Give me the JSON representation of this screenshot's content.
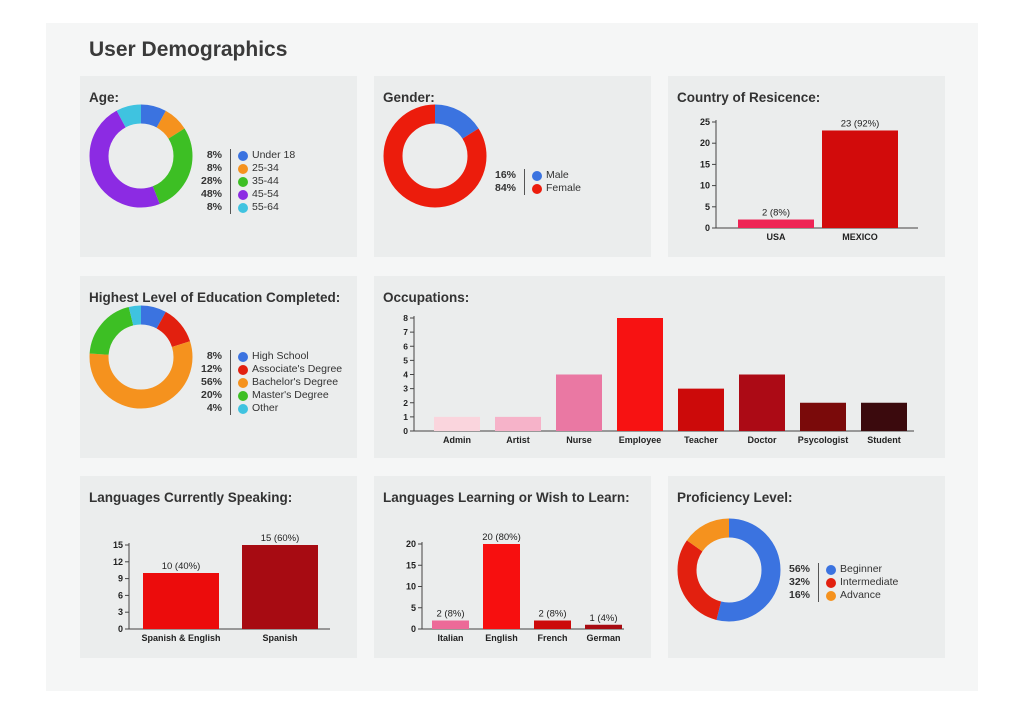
{
  "page_title": "User Demographics",
  "chart_data": [
    {
      "id": "age",
      "type": "pie",
      "title": "Age:",
      "slices": [
        {
          "label": "Under 18",
          "value": 8,
          "display": "8%",
          "color": "#3b73e0"
        },
        {
          "label": "25-34",
          "value": 8,
          "display": "8%",
          "color": "#f5921e"
        },
        {
          "label": "35-44",
          "value": 28,
          "display": "28%",
          "color": "#3dbf24"
        },
        {
          "label": "45-54",
          "value": 48,
          "display": "48%",
          "color": "#8c2be3"
        },
        {
          "label": "55-64",
          "value": 8,
          "display": "8%",
          "color": "#3fc3e0"
        }
      ]
    },
    {
      "id": "gender",
      "type": "pie",
      "title": "Gender:",
      "slices": [
        {
          "label": "Male",
          "value": 16,
          "display": "16%",
          "color": "#3b73e0"
        },
        {
          "label": "Female",
          "value": 84,
          "display": "84%",
          "color": "#ec1c0c"
        }
      ]
    },
    {
      "id": "country",
      "type": "bar",
      "title": "Country of Resicence:",
      "categories": [
        "USA",
        "MEXICO"
      ],
      "values": [
        2,
        23
      ],
      "labels": [
        "2 (8%)",
        "23 (92%)"
      ],
      "colors": [
        "#ee2455",
        "#d20b0b"
      ],
      "yticks": [
        0,
        5,
        10,
        15,
        20,
        25
      ],
      "ylim": [
        0,
        25
      ]
    },
    {
      "id": "education",
      "type": "pie",
      "title": "Highest Level of Education Completed:",
      "slices": [
        {
          "label": "High School",
          "value": 8,
          "display": "8%",
          "color": "#3b73e0"
        },
        {
          "label": "Associate's Degree",
          "value": 12,
          "display": "12%",
          "color": "#e2200f"
        },
        {
          "label": "Bachelor's Degree",
          "value": 56,
          "display": "56%",
          "color": "#f5921e"
        },
        {
          "label": "Master's Degree",
          "value": 20,
          "display": "20%",
          "color": "#3dbf24"
        },
        {
          "label": "Other",
          "value": 4,
          "display": "4%",
          "color": "#3fc3e0"
        }
      ]
    },
    {
      "id": "occupations",
      "type": "bar",
      "title": "Occupations:",
      "categories": [
        "Admin",
        "Artist",
        "Nurse",
        "Employee",
        "Teacher",
        "Doctor",
        "Psycologist",
        "Student"
      ],
      "values": [
        1,
        1,
        4,
        8,
        3,
        4,
        2,
        2
      ],
      "labels": [],
      "colors": [
        "#fad5dd",
        "#f6b3c9",
        "#ea78a3",
        "#f71212",
        "#cc0a0a",
        "#ac0a15",
        "#7a0a0a",
        "#3b0a0d"
      ],
      "yticks": [
        0,
        1,
        2,
        3,
        4,
        5,
        6,
        7,
        8
      ],
      "ylim": [
        0,
        8
      ]
    },
    {
      "id": "speaking",
      "type": "bar",
      "title": "Languages Currently Speaking:",
      "categories": [
        "Spanish & English",
        "Spanish"
      ],
      "values": [
        10,
        15
      ],
      "labels": [
        "10 (40%)",
        "15 (60%)"
      ],
      "colors": [
        "#ec0c0c",
        "#a70b12"
      ],
      "yticks": [
        0,
        3,
        6,
        9,
        12,
        15
      ],
      "ylim": [
        0,
        15
      ]
    },
    {
      "id": "learning",
      "type": "bar",
      "title": "Languages Learning or Wish to Learn:",
      "categories": [
        "Italian",
        "English",
        "French",
        "German"
      ],
      "values": [
        2,
        20,
        2,
        1
      ],
      "labels": [
        "2 (8%)",
        "20 (80%)",
        "2 (8%)",
        "1 (4%)"
      ],
      "colors": [
        "#ec6a98",
        "#f70f0f",
        "#cc0a0a",
        "#a70b12"
      ],
      "yticks": [
        0,
        5,
        10,
        15,
        20
      ],
      "ylim": [
        0,
        20
      ]
    },
    {
      "id": "proficiency",
      "type": "pie",
      "title": "Proficiency Level:",
      "slices": [
        {
          "label": "Beginner",
          "value": 56,
          "display": "56%",
          "color": "#3b73e0"
        },
        {
          "label": "Intermediate",
          "value": 32,
          "display": "32%",
          "color": "#e2200f"
        },
        {
          "label": "Advance",
          "value": 16,
          "display": "16%",
          "color": "#f5921e"
        }
      ]
    }
  ]
}
